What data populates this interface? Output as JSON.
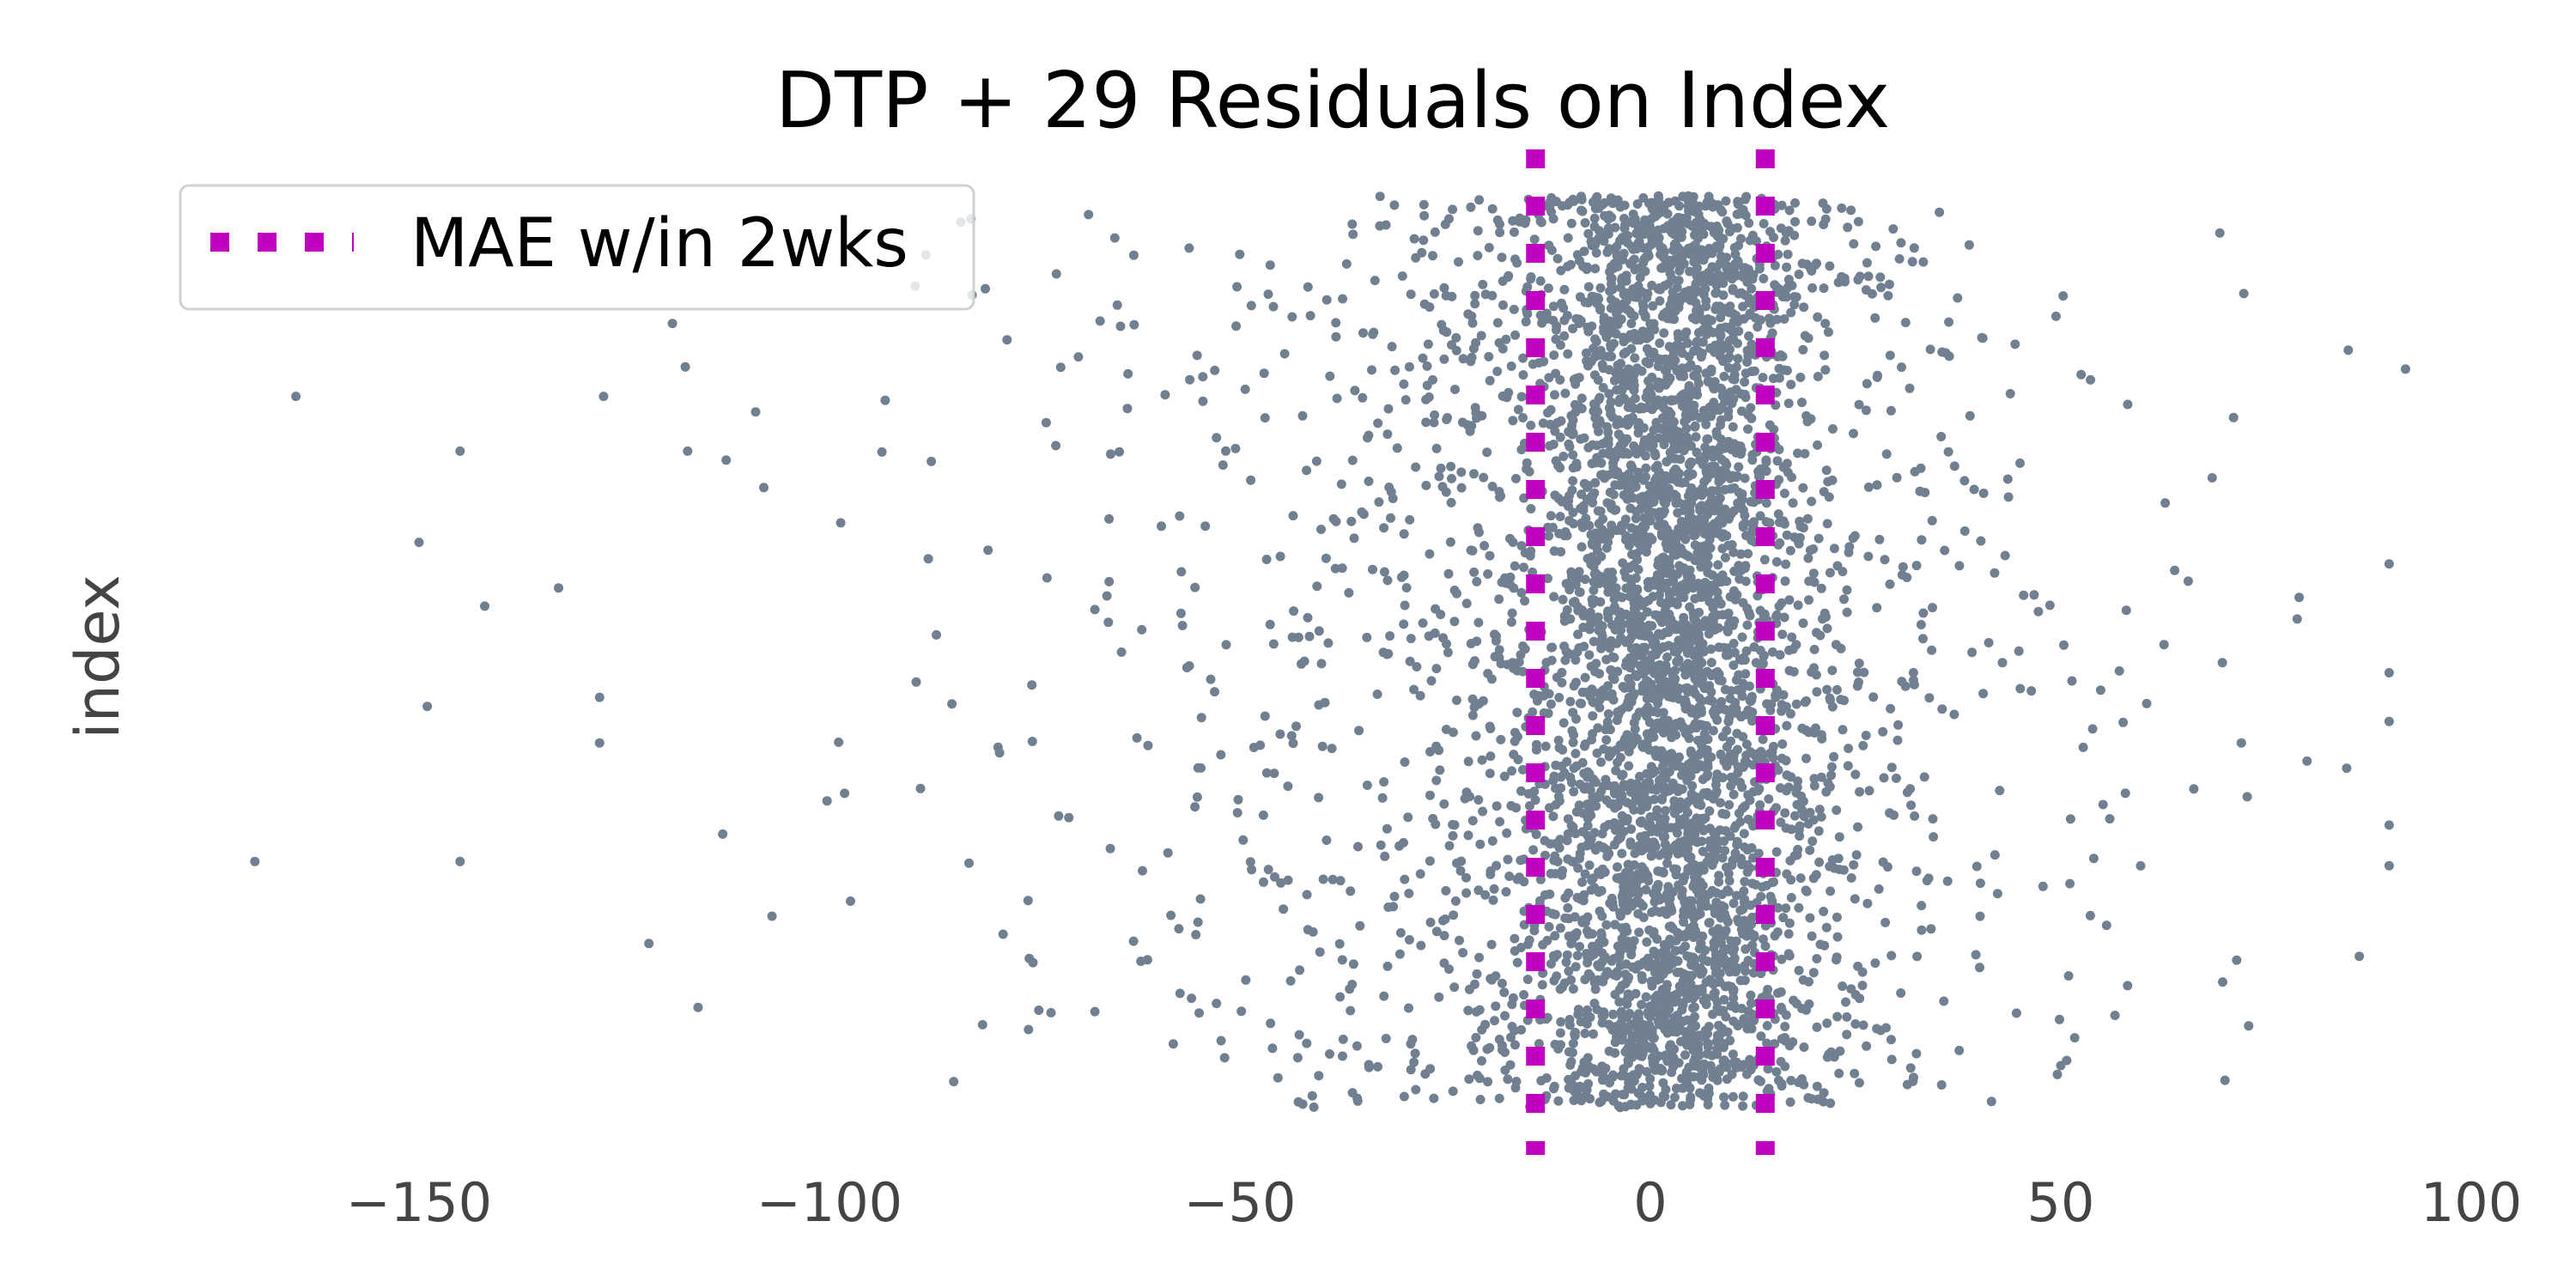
{
  "chart_data": {
    "type": "scatter",
    "title": "DTP + 29 Residuals on Index",
    "xlabel": "",
    "ylabel": "index",
    "xlim": [
      -172,
      100
    ],
    "ylim": [
      0,
      1
    ],
    "x_ticks": [
      -150,
      -100,
      -50,
      0,
      50,
      100
    ],
    "x_tick_labels": [
      "−150",
      "−100",
      "−50",
      "0",
      "50",
      "100"
    ],
    "y_ticks_visible": false,
    "grid": false,
    "legend": {
      "position": "top-left",
      "entries": [
        "MAE w/in 2wks"
      ]
    },
    "series": [
      {
        "name": "residuals",
        "kind": "scatter",
        "color": "#708090",
        "point_count": 5000,
        "x_center": 0,
        "x_spread": "concentrated within about ±20, sparse tail to about −170 and about +92",
        "points": [
          [
            -170,
            0.27
          ],
          [
            -165,
            0.78
          ],
          [
            -150,
            0.62
          ],
          [
            -149,
            0.44
          ],
          [
            -145,
            0.72
          ],
          [
            -145,
            0.27
          ],
          [
            -142,
            0.55
          ],
          [
            -133,
            0.57
          ],
          [
            -128,
            0.45
          ],
          [
            -128,
            0.4
          ],
          [
            -122,
            0.18
          ],
          [
            -116,
            0.11
          ],
          [
            -113,
            0.3
          ],
          [
            -108,
            0.68
          ],
          [
            -107,
            0.21
          ],
          [
            92,
            0.81
          ],
          [
            80,
            0.38
          ],
          [
            72,
            0.4
          ],
          [
            70,
            0.03
          ]
        ]
      },
      {
        "name": "MAE w/in 2wks",
        "kind": "vline",
        "style": "dotted",
        "color": "#c000c0",
        "x": [
          -14,
          14
        ]
      }
    ]
  }
}
